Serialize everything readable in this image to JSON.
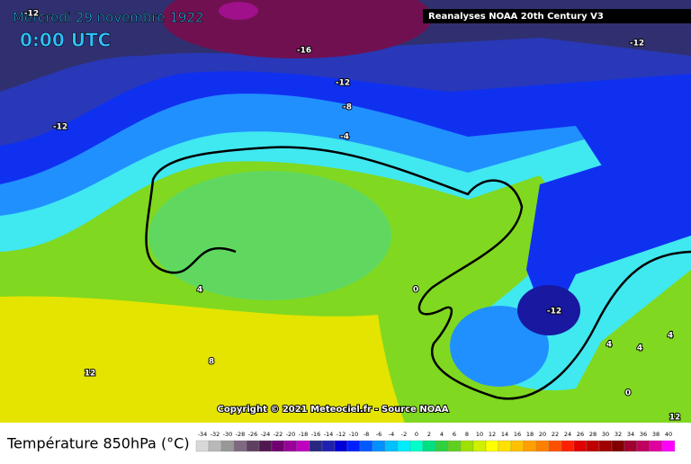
{
  "header": {
    "title": "Mercredi 29 novembre 1922",
    "time": "0:00 UTC",
    "source": "Reanalyses NOAA 20th Century V3",
    "copyright": "Copyright © 2021 Meteociel.fr - Source NOAA"
  },
  "contour_labels": [
    "-12",
    "-16",
    "-12",
    "-8",
    "-4",
    "-12",
    "-12",
    "4",
    "8",
    "12",
    "0",
    "-12",
    "4",
    "4",
    "4",
    "0",
    "12"
  ],
  "legend": {
    "title": "Température 850hPa (°C)",
    "labels": [
      -34,
      -32,
      -30,
      -28,
      -26,
      -24,
      -22,
      -20,
      -18,
      -16,
      -14,
      -12,
      -10,
      -8,
      -6,
      -4,
      -2,
      0,
      2,
      4,
      6,
      8,
      10,
      12,
      14,
      16,
      18,
      20,
      22,
      24,
      26,
      28,
      30,
      32,
      34,
      36,
      38,
      40
    ],
    "colors": [
      "#d8d8d8",
      "#b8b8b8",
      "#989898",
      "#806880",
      "#604060",
      "#501850",
      "#700070",
      "#9a009a",
      "#c000c0",
      "#282880",
      "#2020b0",
      "#0000d8",
      "#0020ff",
      "#0058ff",
      "#0090ff",
      "#00c0ff",
      "#00ecff",
      "#00ffc8",
      "#00e080",
      "#30d040",
      "#60d020",
      "#a0e000",
      "#d0f000",
      "#ffff00",
      "#ffe000",
      "#ffc000",
      "#ffa000",
      "#ff8000",
      "#ff5000",
      "#ff2000",
      "#e00000",
      "#c00000",
      "#a00000",
      "#800000",
      "#a00030",
      "#c00060",
      "#e000a0",
      "#ff00ff"
    ]
  }
}
